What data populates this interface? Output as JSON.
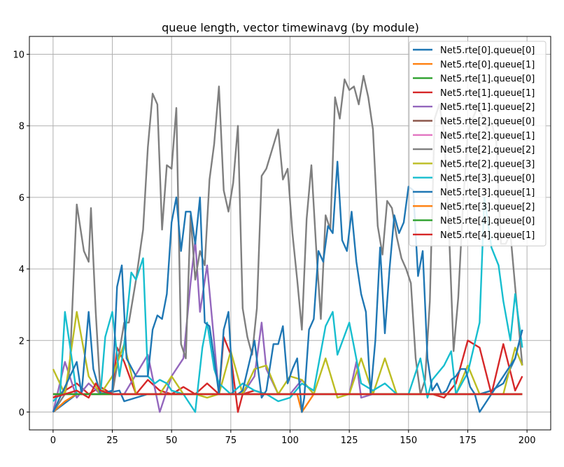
{
  "chart_data": {
    "type": "line",
    "title": "queue length, vector timewinavg (by module)",
    "xlabel": "",
    "ylabel": "",
    "xlim": [
      -10,
      210
    ],
    "ylim": [
      -0.5,
      10.5
    ],
    "xticks": [
      0,
      25,
      50,
      75,
      100,
      125,
      150,
      175,
      200
    ],
    "yticks": [
      0,
      2,
      4,
      6,
      8,
      10
    ],
    "grid": true,
    "legend_position": "top-right",
    "series": [
      {
        "name": "Net5.rte[0].queue[0]",
        "color": "#1f77b4",
        "x": [
          0,
          10,
          20,
          28,
          30,
          35,
          40,
          45,
          50,
          55,
          60,
          65,
          70,
          75,
          80,
          90,
          100,
          105,
          110,
          115,
          120,
          125,
          130,
          135,
          140,
          145,
          150,
          155,
          160,
          165,
          170,
          175,
          180,
          185,
          190,
          195,
          198
        ],
        "y": [
          0,
          0.5,
          0.5,
          0.6,
          0.3,
          0.4,
          0.5,
          0.5,
          0.5,
          0.5,
          0.5,
          0.5,
          0.5,
          0.5,
          0.5,
          0.5,
          0.5,
          0.5,
          0.5,
          0.5,
          0.5,
          0.5,
          0.5,
          0.5,
          0.5,
          0.5,
          0.5,
          0.5,
          0.5,
          0.5,
          0.5,
          0.5,
          0.5,
          0.6,
          0.8,
          1.5,
          2.3
        ]
      },
      {
        "name": "Net5.rte[0].queue[1]",
        "color": "#ff7f0e",
        "x": [
          0,
          5,
          10,
          15,
          20,
          25,
          30,
          40,
          50,
          60,
          70,
          80,
          90,
          100,
          103,
          105,
          110,
          120,
          130,
          140,
          150,
          160,
          170,
          180,
          190,
          198
        ],
        "y": [
          0,
          0.3,
          0.5,
          0.5,
          0.5,
          0.5,
          0.5,
          0.5,
          0.5,
          0.5,
          0.5,
          0.5,
          0.5,
          0.5,
          0.5,
          0,
          0.5,
          0.5,
          0.5,
          0.5,
          0.5,
          0.5,
          0.5,
          0.5,
          0.5,
          0.5
        ]
      },
      {
        "name": "Net5.rte[1].queue[0]",
        "color": "#2ca02c",
        "x": [
          0,
          50,
          100,
          150,
          198
        ],
        "y": [
          0.5,
          0.5,
          0.5,
          0.5,
          0.5
        ]
      },
      {
        "name": "Net5.rte[1].queue[1]",
        "color": "#d62728",
        "x": [
          0,
          5,
          10,
          15,
          20,
          25,
          27,
          30,
          35,
          40,
          45,
          50,
          55,
          60,
          65,
          70,
          72,
          75,
          78,
          80,
          85,
          90,
          95,
          100,
          105,
          110,
          115,
          120,
          125,
          130,
          135,
          140,
          145,
          150,
          155,
          160,
          165,
          170,
          175,
          180,
          185,
          190,
          195,
          198
        ],
        "y": [
          0.4,
          0.6,
          0.8,
          0.5,
          0.7,
          0.5,
          1.8,
          1.4,
          0.5,
          0.9,
          0.6,
          0.5,
          0.7,
          0.5,
          0.8,
          0.5,
          2.1,
          1.6,
          0,
          0.5,
          0.6,
          0.5,
          0.5,
          0.5,
          0.5,
          0.5,
          0.5,
          0.5,
          0.5,
          0.5,
          0.5,
          0.5,
          0.5,
          0.5,
          0.5,
          0.5,
          0.4,
          0.8,
          2.0,
          1.8,
          0.5,
          1.9,
          0.6,
          1.0
        ]
      },
      {
        "name": "Net5.rte[1].queue[2]",
        "color": "#9467bd",
        "x": [
          0,
          5,
          10,
          15,
          20,
          30,
          40,
          45,
          50,
          55,
          58,
          60,
          62,
          65,
          70,
          75,
          80,
          85,
          88,
          90,
          95,
          100,
          105,
          110,
          115,
          120,
          125,
          128,
          130,
          135,
          140,
          145,
          150,
          155,
          160,
          165,
          170,
          175,
          180,
          185,
          190,
          195,
          198
        ],
        "y": [
          0,
          1.4,
          0.4,
          0.8,
          0.5,
          0.5,
          1.6,
          0,
          1.0,
          1.5,
          3.6,
          4.8,
          2.8,
          4.1,
          0.5,
          0.5,
          0.5,
          1.0,
          2.5,
          1.2,
          0.5,
          0.5,
          0.9,
          0.5,
          0.5,
          0.5,
          0.5,
          1.4,
          0.4,
          0.5,
          0.5,
          0.5,
          0.5,
          0.5,
          0.5,
          0.5,
          0.5,
          0.5,
          0.5,
          0.5,
          0.5,
          0.5,
          0.5
        ]
      },
      {
        "name": "Net5.rte[2].queue[0]",
        "color": "#8c564b",
        "x": [
          0,
          100,
          198
        ],
        "y": [
          0.5,
          0.5,
          0.5
        ]
      },
      {
        "name": "Net5.rte[2].queue[1]",
        "color": "#e377c2",
        "x": [
          0,
          100,
          198
        ],
        "y": [
          0.5,
          0.5,
          0.5
        ]
      },
      {
        "name": "Net5.rte[2].queue[2]",
        "color": "#7f7f7f",
        "x": [
          0,
          5,
          7,
          10,
          13,
          15,
          16,
          18,
          20,
          25,
          30,
          32,
          35,
          38,
          40,
          42,
          44,
          46,
          48,
          50,
          52,
          54,
          56,
          58,
          60,
          62,
          64,
          66,
          68,
          70,
          72,
          74,
          76,
          78,
          80,
          82,
          84,
          86,
          88,
          90,
          95,
          97,
          99,
          101,
          103,
          105,
          107,
          109,
          111,
          113,
          115,
          117,
          119,
          121,
          123,
          125,
          127,
          129,
          131,
          133,
          135,
          137,
          139,
          141,
          143,
          145,
          147,
          149,
          151,
          153,
          155,
          157,
          159,
          161,
          163,
          165,
          167,
          169,
          171,
          173,
          175,
          177,
          179,
          181,
          183,
          185,
          187,
          189,
          191,
          193,
          195,
          198
        ],
        "y": [
          0,
          0.5,
          1.2,
          5.8,
          4.5,
          4.2,
          5.7,
          2.8,
          0.5,
          0.5,
          2.5,
          2.5,
          3.7,
          5.1,
          7.4,
          8.9,
          8.6,
          5.1,
          6.9,
          6.8,
          8.5,
          1.9,
          1.5,
          5.5,
          3.7,
          4.5,
          4.1,
          6.5,
          7.5,
          9.1,
          6.2,
          5.6,
          6.4,
          8.0,
          2.9,
          2.1,
          1.6,
          2.9,
          6.6,
          6.8,
          7.9,
          6.5,
          6.8,
          5.0,
          3.7,
          2.3,
          5.4,
          6.9,
          4.6,
          2.6,
          5.5,
          5.1,
          8.8,
          8.2,
          9.3,
          9.0,
          9.1,
          8.6,
          9.4,
          8.8,
          7.9,
          5.2,
          4.4,
          5.9,
          5.7,
          4.9,
          4.3,
          4.0,
          3.6,
          1.5,
          0.5,
          0.9,
          3.1,
          8.2,
          8.6,
          7.8,
          5.2,
          1.7,
          3.2,
          5.8,
          7.8,
          8.2,
          8.5,
          8.3,
          7.9,
          8.1,
          7.6,
          4.7,
          4.7,
          5.0,
          3.5,
          1.3
        ]
      },
      {
        "name": "Net5.rte[2].queue[3]",
        "color": "#bcbd22",
        "x": [
          0,
          5,
          10,
          15,
          20,
          25,
          30,
          35,
          40,
          45,
          50,
          55,
          60,
          65,
          70,
          75,
          80,
          85,
          90,
          95,
          100,
          105,
          110,
          115,
          120,
          125,
          130,
          135,
          140,
          145,
          150,
          155,
          160,
          165,
          170,
          175,
          180,
          185,
          190,
          195,
          198
        ],
        "y": [
          1.2,
          0.5,
          2.8,
          1.0,
          0.5,
          1.0,
          1.9,
          0.5,
          0.5,
          0.5,
          1.0,
          0.5,
          0.5,
          0.4,
          0.5,
          1.7,
          0.5,
          1.2,
          1.3,
          0.5,
          1.0,
          0.9,
          0.5,
          1.5,
          0.4,
          0.5,
          1.5,
          0.5,
          1.5,
          0.5,
          0.5,
          0.5,
          0.5,
          0.5,
          0.5,
          1.3,
          0.5,
          0.5,
          0.5,
          1.8,
          1.3
        ]
      },
      {
        "name": "Net5.rte[3].queue[0]",
        "color": "#17becf",
        "x": [
          0,
          3,
          5,
          7,
          10,
          15,
          20,
          22,
          25,
          28,
          30,
          33,
          35,
          38,
          40,
          43,
          45,
          48,
          50,
          55,
          60,
          63,
          65,
          68,
          70,
          75,
          80,
          85,
          90,
          95,
          100,
          105,
          110,
          115,
          118,
          120,
          125,
          130,
          135,
          140,
          145,
          150,
          155,
          158,
          160,
          165,
          168,
          170,
          175,
          180,
          182,
          185,
          188,
          190,
          193,
          195,
          198
        ],
        "y": [
          0.3,
          0.5,
          2.8,
          1.9,
          0.5,
          0.5,
          0.5,
          2.1,
          2.8,
          1.0,
          1.9,
          3.9,
          3.7,
          4.3,
          1.0,
          0.8,
          0.9,
          0.8,
          0.6,
          0.5,
          0,
          1.8,
          2.5,
          1.2,
          0.8,
          0.5,
          0.8,
          0.6,
          0.5,
          0.3,
          0.4,
          0.8,
          0.6,
          2.4,
          2.8,
          1.6,
          2.5,
          0.8,
          0.6,
          0.8,
          0.5,
          0.5,
          1.5,
          0.4,
          0.9,
          1.3,
          1.7,
          0.5,
          1.1,
          2.5,
          6.0,
          4.6,
          4.1,
          3.1,
          2.0,
          3.3,
          1.8
        ]
      },
      {
        "name": "Net5.rte[3].queue[1]",
        "color": "#1f77b4",
        "x": [
          0,
          10,
          12,
          15,
          17,
          20,
          25,
          27,
          29,
          31,
          35,
          38,
          40,
          42,
          44,
          46,
          48,
          50,
          52,
          54,
          56,
          58,
          60,
          62,
          64,
          66,
          68,
          70,
          72,
          74,
          76,
          78,
          80,
          85,
          88,
          90,
          93,
          95,
          97,
          99,
          101,
          103,
          105,
          106,
          108,
          110,
          112,
          114,
          116,
          118,
          120,
          122,
          124,
          126,
          128,
          130,
          132,
          134,
          136,
          138,
          140,
          142,
          144,
          146,
          148,
          150,
          152,
          154,
          156,
          158,
          160,
          162,
          164,
          166,
          168,
          170,
          172,
          174,
          176,
          178,
          180,
          185,
          190,
          195,
          198
        ],
        "y": [
          0,
          1.4,
          0.5,
          2.8,
          1.2,
          0.5,
          0.6,
          3.5,
          4.1,
          1.5,
          1.0,
          1.0,
          1.0,
          2.3,
          2.7,
          2.6,
          3.3,
          5.3,
          6.0,
          4.5,
          5.6,
          5.6,
          4.7,
          6.0,
          2.5,
          2.4,
          1.5,
          0.5,
          2.3,
          2.8,
          0.5,
          0.5,
          0.6,
          2.0,
          0.4,
          0.6,
          1.9,
          1.9,
          2.4,
          0.8,
          1.2,
          1.5,
          0,
          0.4,
          2.3,
          2.6,
          4.5,
          4.2,
          5.2,
          5.0,
          7.0,
          4.8,
          4.5,
          5.6,
          4.2,
          3.3,
          2.8,
          0.5,
          2.0,
          4.6,
          2.2,
          4.0,
          5.5,
          5.0,
          5.3,
          6.3,
          6.2,
          3.8,
          4.5,
          1.5,
          0.6,
          0.8,
          0.5,
          0.6,
          0.9,
          1.0,
          1.2,
          1.2,
          0.7,
          0.5,
          0,
          0.5,
          1.0,
          1.5,
          2.3
        ]
      },
      {
        "name": "Net5.rte[3].queue[2]",
        "color": "#ff7f0e",
        "x": [
          0,
          100,
          198
        ],
        "y": [
          0.5,
          0.5,
          0.5
        ]
      },
      {
        "name": "Net5.rte[4].queue[0]",
        "color": "#2ca02c",
        "x": [
          0,
          100,
          198
        ],
        "y": [
          0.5,
          0.5,
          0.5
        ]
      },
      {
        "name": "Net5.rte[4].queue[1]",
        "color": "#d62728",
        "x": [
          0,
          5,
          10,
          15,
          18,
          20,
          25,
          30,
          35,
          40,
          45,
          50,
          55,
          60,
          65,
          70,
          75,
          80,
          85,
          90,
          95,
          100,
          105,
          110,
          115,
          120,
          125,
          130,
          135,
          140,
          145,
          150,
          155,
          160,
          165,
          170,
          175,
          180,
          185,
          190,
          195,
          198
        ],
        "y": [
          0.4,
          0.5,
          0.6,
          0.4,
          0.8,
          0.6,
          0.5,
          0.5,
          0.5,
          0.5,
          0.5,
          0.5,
          0.5,
          0.5,
          0.5,
          0.5,
          0.5,
          0.5,
          0.5,
          0.5,
          0.5,
          0.5,
          0.5,
          0.5,
          0.5,
          0.5,
          0.5,
          0.5,
          0.5,
          0.5,
          0.5,
          0.5,
          0.5,
          0.5,
          0.5,
          0.5,
          0.5,
          0.5,
          0.5,
          0.5,
          0.5,
          0.5
        ]
      }
    ]
  }
}
